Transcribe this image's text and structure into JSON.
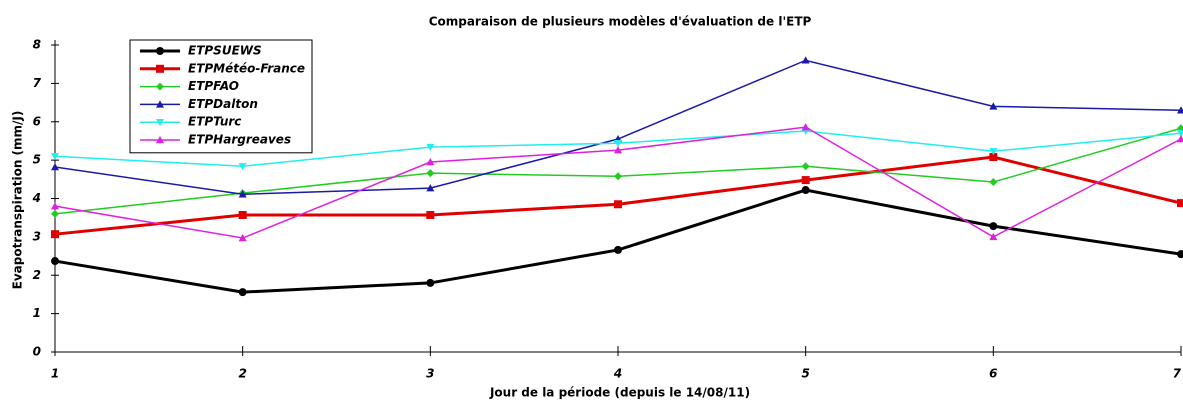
{
  "chart_data": {
    "type": "line",
    "title": "Comparaison de plusieurs modèles d'évaluation de l'ETP",
    "x_label": "Jour de la période (depuis le 14/08/11)",
    "y_label": "Evapotranspiration (mm/J)",
    "x": [
      1,
      2,
      3,
      4,
      5,
      6,
      7
    ],
    "xlim": [
      1,
      7
    ],
    "xticks": [
      1,
      2,
      3,
      4,
      5,
      6,
      7
    ],
    "ylim": [
      0,
      8
    ],
    "yticks": [
      0,
      1,
      2,
      3,
      4,
      5,
      6,
      7,
      8
    ],
    "legend": "upper left",
    "series": [
      {
        "name": "ETPSUEWS",
        "color": "#000000",
        "marker": "circle",
        "linewidth": 3,
        "values": [
          2.37,
          1.56,
          1.8,
          2.66,
          4.22,
          3.28,
          2.55
        ]
      },
      {
        "name": "ETPMétéo-France",
        "color": "#e00000",
        "marker": "square",
        "linewidth": 3,
        "values": [
          3.07,
          3.57,
          3.57,
          3.85,
          4.48,
          5.08,
          3.88
        ]
      },
      {
        "name": "ETPFAO",
        "color": "#22cc22",
        "marker": "diamond",
        "linewidth": 1.5,
        "values": [
          3.6,
          4.14,
          4.66,
          4.58,
          4.84,
          4.43,
          5.83
        ]
      },
      {
        "name": "ETPDalton",
        "color": "#1a1aaa",
        "marker": "triangle-up",
        "linewidth": 1.5,
        "values": [
          4.82,
          4.11,
          4.27,
          5.55,
          7.6,
          6.4,
          6.3
        ]
      },
      {
        "name": "ETPTurc",
        "color": "#22eeee",
        "marker": "triangle-down",
        "linewidth": 1.5,
        "values": [
          5.1,
          4.84,
          5.34,
          5.44,
          5.76,
          5.23,
          5.7
        ]
      },
      {
        "name": "ETPHargreaves",
        "color": "#e020e0",
        "marker": "triangle-up",
        "linewidth": 1.5,
        "values": [
          3.8,
          2.97,
          4.95,
          5.26,
          5.86,
          3.0,
          5.55
        ]
      }
    ]
  }
}
